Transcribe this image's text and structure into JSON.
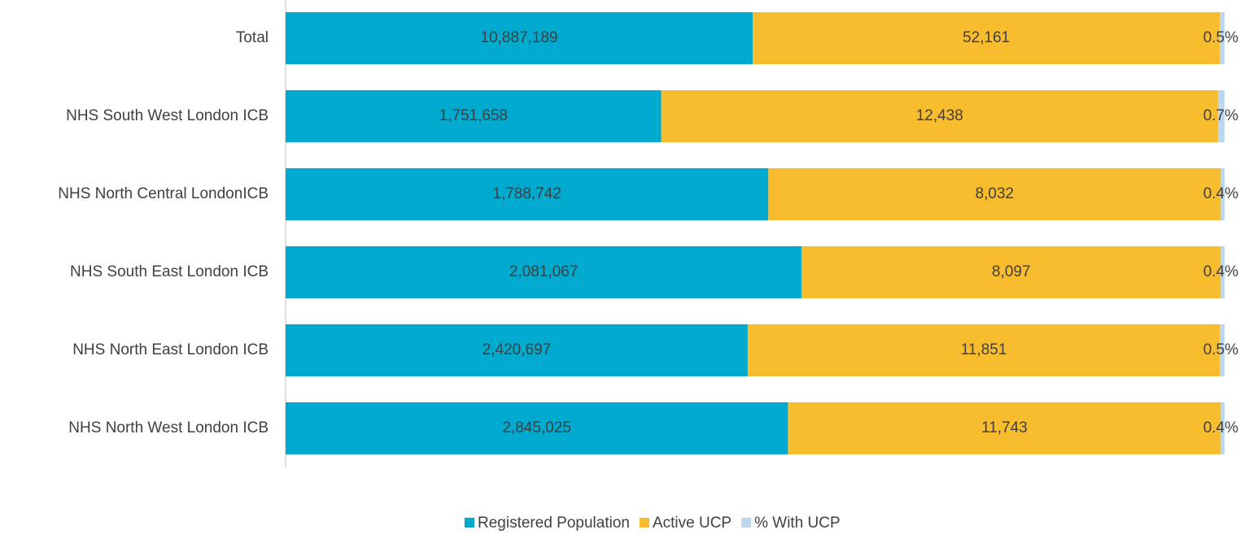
{
  "chart_data": {
    "type": "stacked_bar_h",
    "categories": [
      "Total",
      "NHS South West London ICB",
      "NHS North Central LondonICB",
      "NHS South East London ICB",
      "NHS North East London ICB",
      "NHS North West London ICB"
    ],
    "series": [
      {
        "name": "Registered Population",
        "color": "#00a9ce",
        "values": [
          10887189,
          1751658,
          1788742,
          2081067,
          2420697,
          2845025
        ],
        "value_labels": [
          "10,887,189",
          "1,751,658",
          "1,788,742",
          "2,081,067",
          "2,420,697",
          "2,845,025"
        ]
      },
      {
        "name": "Active UCP",
        "color": "#f8bc2f",
        "values": [
          52161,
          12438,
          8032,
          8097,
          11851,
          11743
        ],
        "value_labels": [
          "52,161",
          "12,438",
          "8,032",
          "8,097",
          "11,851",
          "11,743"
        ]
      },
      {
        "name": "% With UCP",
        "color": "#bdd7ee",
        "values": [
          0.5,
          0.7,
          0.4,
          0.4,
          0.5,
          0.4
        ],
        "value_labels": [
          "0.5%",
          "0.7%",
          "0.4%",
          "0.4%",
          "0.5%",
          "0.4%"
        ]
      }
    ],
    "legend": "bottom"
  }
}
